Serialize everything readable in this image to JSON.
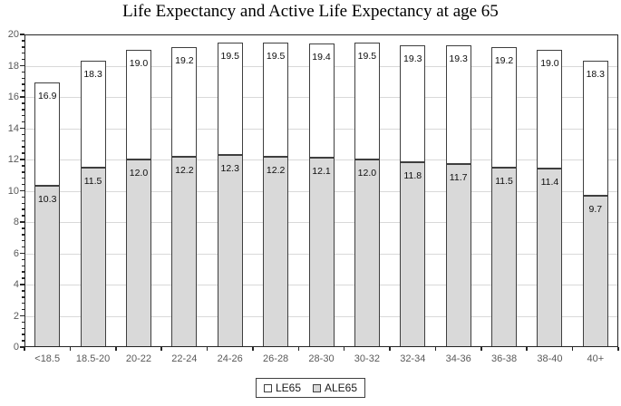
{
  "chart_data": {
    "type": "bar",
    "subtype": "stacked-column",
    "title": "Life Expectancy and Active Life Expectancy at age 65",
    "categories": [
      "<18.5",
      "18.5-20",
      "20-22",
      "22-24",
      "24-26",
      "26-28",
      "28-30",
      "30-32",
      "32-34",
      "34-36",
      "36-38",
      "38-40",
      "40+"
    ],
    "series": [
      {
        "name": "LE65",
        "role": "total-bar-height",
        "fill": "#ffffff",
        "values": [
          16.9,
          18.3,
          19.0,
          19.2,
          19.5,
          19.5,
          19.4,
          19.5,
          19.3,
          19.3,
          19.2,
          19.0,
          18.3
        ],
        "value_labels": [
          "16.9",
          "18.3",
          "19.0",
          "19.2",
          "19.5",
          "19.5",
          "19.4",
          "19.5",
          "19.3",
          "19.3",
          "19.2",
          "19.0",
          "18.3"
        ]
      },
      {
        "name": "ALE65",
        "role": "base-segment",
        "fill": "#d9d9d9",
        "values": [
          10.3,
          11.5,
          12.0,
          12.2,
          12.3,
          12.2,
          12.1,
          12.0,
          11.8,
          11.7,
          11.5,
          11.4,
          9.7
        ],
        "value_labels": [
          "10.3",
          "11.5",
          "12.0",
          "12.2",
          "12.3",
          "12.2",
          "12.1",
          "12.0",
          "11.8",
          "11.7",
          "11.5",
          "11.4",
          "9.7"
        ]
      }
    ],
    "xlabel": "",
    "ylabel": "",
    "ylim": [
      0,
      20
    ],
    "y_major_unit": 2,
    "y_minor_unit": 0.4,
    "y_tick_labels": [
      "0",
      "2",
      "4",
      "6",
      "8",
      "10",
      "12",
      "14",
      "16",
      "18",
      "20"
    ],
    "grid": true,
    "data_label_placement": "inside-end",
    "legend_position": "bottom-boxed",
    "legend": [
      "LE65",
      "ALE65"
    ]
  },
  "colors": {
    "background": "#ffffff",
    "title": "#000000",
    "bar_border": "#3f3f3f",
    "le65_fill": "#ffffff",
    "ale65_fill": "#d9d9d9",
    "gridline": "#d9d9d9",
    "axis": "#262626",
    "tick_label": "#595959",
    "data_label": "#0d0d0d"
  }
}
